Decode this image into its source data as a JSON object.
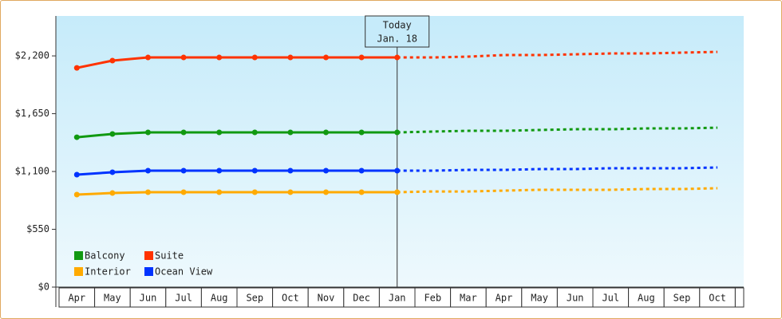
{
  "chart_data": {
    "type": "line",
    "categories": [
      "Apr",
      "May",
      "Jun",
      "Jul",
      "Aug",
      "Sep",
      "Oct",
      "Nov",
      "Dec",
      "Jan",
      "Feb",
      "Mar",
      "Apr",
      "May",
      "Jun",
      "Jul",
      "Aug",
      "Sep",
      "Oct"
    ],
    "series": [
      {
        "name": "Balcony",
        "color": "#119911",
        "values": [
          1426,
          1457,
          1472,
          1472,
          1472,
          1472,
          1472,
          1472,
          1472,
          1472,
          1480,
          1487,
          1487,
          1495,
          1502,
          1502,
          1510,
          1510,
          1517
        ]
      },
      {
        "name": "Suite",
        "color": "#ff3300",
        "values": [
          2086,
          2155,
          2185,
          2185,
          2185,
          2185,
          2185,
          2185,
          2185,
          2185,
          2185,
          2193,
          2208,
          2208,
          2215,
          2223,
          2223,
          2231,
          2238
        ]
      },
      {
        "name": "Interior",
        "color": "#ffaa00",
        "values": [
          880,
          895,
          903,
          903,
          903,
          903,
          903,
          903,
          903,
          903,
          910,
          910,
          918,
          926,
          926,
          926,
          933,
          933,
          941
        ]
      },
      {
        "name": "Ocean View",
        "color": "#0033ff",
        "values": [
          1070,
          1093,
          1108,
          1108,
          1108,
          1108,
          1108,
          1108,
          1108,
          1108,
          1108,
          1115,
          1115,
          1123,
          1123,
          1131,
          1131,
          1131,
          1138
        ]
      }
    ],
    "annotation": {
      "lines": [
        "Today",
        "Jan. 18"
      ],
      "at": "Jan"
    },
    "ylim": [
      0,
      2580
    ],
    "yticks": [
      {
        "value": 0,
        "label": "$0"
      },
      {
        "value": 550,
        "label": "$550"
      },
      {
        "value": 1100,
        "label": "$1,100"
      },
      {
        "value": 1650,
        "label": "$1,650"
      },
      {
        "value": 2200,
        "label": "$2,200"
      }
    ],
    "legend": "lower left"
  }
}
